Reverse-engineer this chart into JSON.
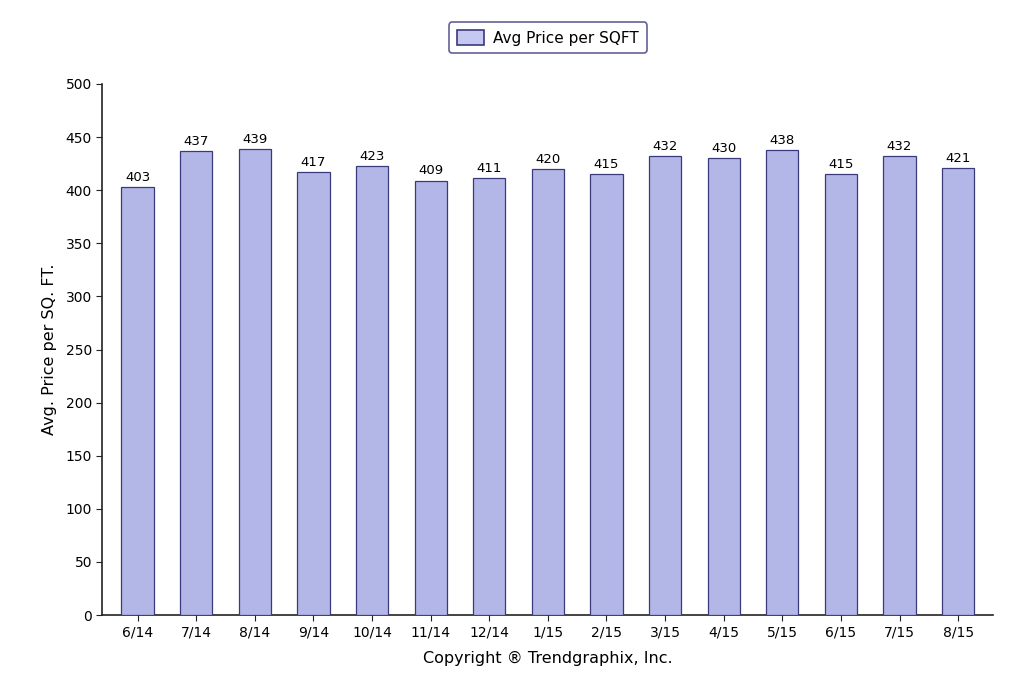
{
  "categories": [
    "6/14",
    "7/14",
    "8/14",
    "9/14",
    "10/14",
    "11/14",
    "12/14",
    "1/15",
    "2/15",
    "3/15",
    "4/15",
    "5/15",
    "6/15",
    "7/15",
    "8/15"
  ],
  "values": [
    403,
    437,
    439,
    417,
    423,
    409,
    411,
    420,
    415,
    432,
    430,
    438,
    415,
    432,
    421
  ],
  "bar_color": "#b3b7e8",
  "bar_edge_color": "#3a3a7a",
  "ylim": [
    0,
    500
  ],
  "yticks": [
    0,
    50,
    100,
    150,
    200,
    250,
    300,
    350,
    400,
    450,
    500
  ],
  "ylabel": "Avg. Price per SQ. FT.",
  "xlabel": "Copyright ® Trendgraphix, Inc.",
  "legend_label": "Avg Price per SQFT",
  "legend_facecolor": "#c5c8f0",
  "legend_edgecolor": "#3a3a7a",
  "bar_label_fontsize": 9.5,
  "axis_label_fontsize": 11.5,
  "tick_label_fontsize": 10,
  "legend_fontsize": 11,
  "background_color": "#ffffff",
  "spine_color": "#222222",
  "bar_width": 0.55
}
